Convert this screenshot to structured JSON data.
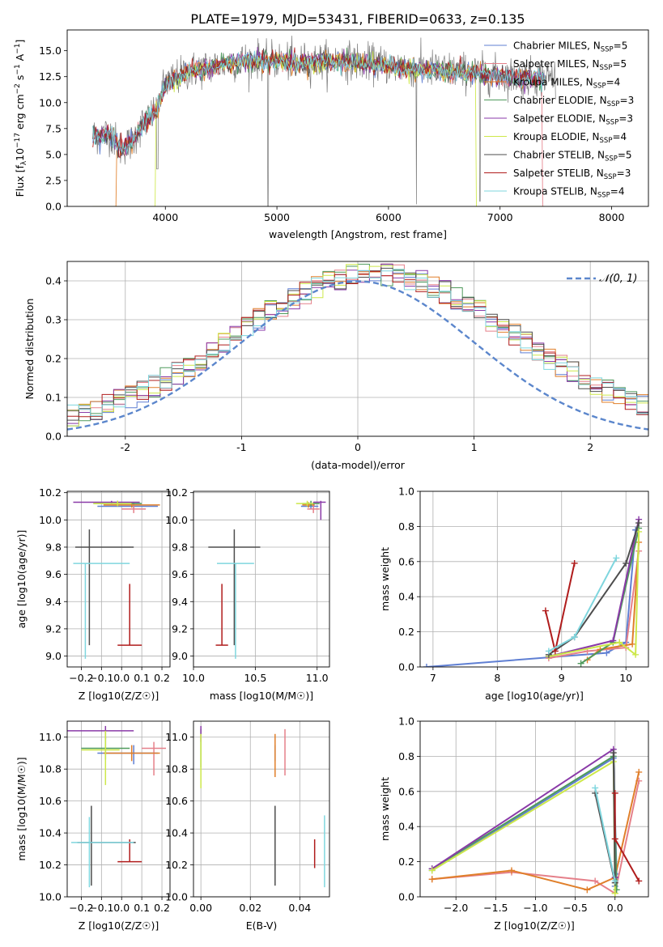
{
  "figure_title": "PLATE=1979, MJD=53431, FIBERID=0633, z=0.135",
  "models": [
    {
      "name": "Chabrier MILES, N$_{SSP}$=5",
      "label_main": "Chabrier MILES, N",
      "label_sub": "SSP",
      "label_tail": "=5",
      "color": "#5f7fd3"
    },
    {
      "name": "Salpeter MILES, N$_{SSP}$=5",
      "label_main": "Salpeter MILES, N",
      "label_sub": "SSP",
      "label_tail": "=5",
      "color": "#e5808a"
    },
    {
      "name": "Kroupa MILES, N$_{SSP}$=4",
      "label_main": "Kroupa MILES, N",
      "label_sub": "SSP",
      "label_tail": "=4",
      "color": "#e07f2a"
    },
    {
      "name": "Chabrier ELODIE, N$_{SSP}$=3",
      "label_main": "Chabrier ELODIE, N",
      "label_sub": "SSP",
      "label_tail": "=3",
      "color": "#4f9a5c"
    },
    {
      "name": "Salpeter ELODIE, N$_{SSP}$=3",
      "label_main": "Salpeter ELODIE, N",
      "label_sub": "SSP",
      "label_tail": "=3",
      "color": "#8a3aa8"
    },
    {
      "name": "Kroupa ELODIE, N$_{SSP}$=4",
      "label_main": "Kroupa ELODIE, N",
      "label_sub": "SSP",
      "label_tail": "=4",
      "color": "#cde84a"
    },
    {
      "name": "Chabrier STELIB, N$_{SSP}$=5",
      "label_main": "Chabrier STELIB, N",
      "label_sub": "SSP",
      "label_tail": "=5",
      "color": "#4d4d4d"
    },
    {
      "name": "Salpeter STELIB, N$_{SSP}$=3",
      "label_main": "Salpeter STELIB, N",
      "label_sub": "SSP",
      "label_tail": "=3",
      "color": "#b01c1c"
    },
    {
      "name": "Kroupa STELIB, N$_{SSP}$=4",
      "label_main": "Kroupa STELIB, N",
      "label_sub": "SSP",
      "label_tail": "=4",
      "color": "#7fd6de"
    }
  ],
  "chart_data": [
    {
      "id": "spectrum",
      "type": "line",
      "xlabel": "wavelength [Angstrom, rest frame]",
      "ylabel": "Flux [f_λ 10^-17 erg cm^-2 s^-1 A^-1]",
      "xlim": [
        3120,
        8330
      ],
      "ylim": [
        0,
        17
      ],
      "xticks": [
        4000,
        5000,
        6000,
        7000,
        8000
      ],
      "yticks": [
        0,
        2.5,
        5,
        7.5,
        10,
        12.5,
        15
      ],
      "ytick_labels": [
        "0.0",
        "2.5",
        "5.0",
        "7.5",
        "10.0",
        "12.5",
        "15.0"
      ],
      "grid": false,
      "legend": "right",
      "data_trend": {
        "x": [
          3350,
          3500,
          3600,
          3700,
          3800,
          3900,
          4000,
          4200,
          4500,
          4800,
          5200,
          5600,
          6000,
          6400,
          6800,
          7200,
          7500
        ],
        "y": [
          6.8,
          7.1,
          5.6,
          6.2,
          8.0,
          9.0,
          11.8,
          13.0,
          13.7,
          14.2,
          13.9,
          14.1,
          13.6,
          13.2,
          12.9,
          12.4,
          12.5
        ]
      },
      "data_x_range": [
        3350,
        7500
      ],
      "model_x_range": [
        3350,
        7400
      ]
    },
    {
      "id": "residuals",
      "type": "line",
      "xlabel": "(data-model)/error",
      "ylabel": "Normed distribution",
      "xlim": [
        -2.5,
        2.5
      ],
      "ylim": [
        0,
        0.45
      ],
      "xticks": [
        -2,
        -1,
        0,
        1,
        2
      ],
      "yticks": [
        0,
        0.1,
        0.2,
        0.3,
        0.4
      ],
      "ytick_labels": [
        "0.0",
        "0.1",
        "0.2",
        "0.3",
        "0.4"
      ],
      "grid": true,
      "legend": "top-right",
      "reference_curve": {
        "name": "N(0,1)",
        "label": "𝒩(0, 1)",
        "mu": 0,
        "sigma": 1
      },
      "histogram_bin_width": 0.1
    },
    {
      "id": "age_vs_Z",
      "type": "scatter",
      "xlabel": "Z [log10(Z/Z☉)]",
      "ylabel": "age [log10(age/yr)]",
      "xlim": [
        -0.27,
        0.24
      ],
      "ylim": [
        8.92,
        10.21
      ],
      "xticks": [
        -0.2,
        -0.1,
        0.0,
        0.1,
        0.2
      ],
      "yticks": [
        9.0,
        9.2,
        9.4,
        9.6,
        9.8,
        10.0,
        10.2
      ],
      "xtick_labels": [
        "−0.2",
        "−0.1",
        "0.0",
        "0.1",
        "0.2"
      ],
      "ytick_labels": [
        "9.0",
        "9.2",
        "9.4",
        "9.6",
        "9.8",
        "10.0",
        "10.2"
      ],
      "grid": true,
      "points": [
        {
          "model": 0,
          "x": 0.06,
          "y": 10.1,
          "xerr": [
            0.18,
            0.12
          ],
          "yerr": [
            0.02,
            0.02
          ]
        },
        {
          "model": 1,
          "x": 0.06,
          "y": 10.08,
          "xerr": [
            0.06,
            0.06
          ],
          "yerr": [
            0.03,
            0.05
          ]
        },
        {
          "model": 2,
          "x": 0.05,
          "y": 10.11,
          "xerr": [
            0.14,
            0.14
          ],
          "yerr": [
            0.02,
            0.02
          ]
        },
        {
          "model": 3,
          "x": -0.02,
          "y": 10.12,
          "xerr": [
            0.12,
            0.12
          ],
          "yerr": [
            0.02,
            0.02
          ]
        },
        {
          "model": 4,
          "x": -0.05,
          "y": 10.13,
          "xerr": [
            0.19,
            0.14
          ],
          "yerr": [
            0.01,
            0.01
          ]
        },
        {
          "model": 5,
          "x": -0.02,
          "y": 10.12,
          "xerr": [
            0.12,
            0.07
          ],
          "yerr": [
            0.02,
            0.02
          ]
        },
        {
          "model": 6,
          "x": -0.16,
          "y": 9.8,
          "xerr": [
            0.07,
            0.22
          ],
          "yerr": [
            0.72,
            0.13
          ]
        },
        {
          "model": 7,
          "x": 0.04,
          "y": 9.08,
          "xerr": [
            0.06,
            0.06
          ],
          "yerr": [
            0.0,
            0.45
          ]
        },
        {
          "model": 8,
          "x": -0.18,
          "y": 9.68,
          "xerr": [
            0.06,
            0.22
          ],
          "yerr": [
            0.7,
            0.0
          ]
        }
      ]
    },
    {
      "id": "age_vs_mass",
      "type": "scatter",
      "xlabel": "mass [log10(M/M☉)]",
      "ylabel": "",
      "xlim": [
        10.0,
        11.1
      ],
      "ylim": [
        8.92,
        10.21
      ],
      "xticks": [
        10.0,
        10.5,
        11.0
      ],
      "yticks": [
        9.0,
        9.2,
        9.4,
        9.6,
        9.8,
        10.0,
        10.2
      ],
      "xtick_labels": [
        "10.0",
        "10.5",
        "11.0"
      ],
      "ytick_labels": [
        "9.0",
        "9.2",
        "9.4",
        "9.6",
        "9.8",
        "10.0",
        "10.2"
      ],
      "grid": true,
      "points": [
        {
          "model": 0,
          "x": 10.95,
          "y": 10.1,
          "xerr": [
            0.08,
            0.06
          ],
          "yerr": [
            0.02,
            0.02
          ]
        },
        {
          "model": 1,
          "x": 10.97,
          "y": 10.08,
          "xerr": [
            0.05,
            0.05
          ],
          "yerr": [
            0.03,
            0.05
          ]
        },
        {
          "model": 2,
          "x": 10.93,
          "y": 10.11,
          "xerr": [
            0.05,
            0.05
          ],
          "yerr": [
            0.02,
            0.02
          ]
        },
        {
          "model": 3,
          "x": 10.95,
          "y": 10.12,
          "xerr": [
            0.07,
            0.07
          ],
          "yerr": [
            0.02,
            0.02
          ]
        },
        {
          "model": 4,
          "x": 11.03,
          "y": 10.13,
          "xerr": [
            0.06,
            0.04
          ],
          "yerr": [
            0.13,
            0.01
          ]
        },
        {
          "model": 5,
          "x": 10.92,
          "y": 10.12,
          "xerr": [
            0.09,
            0.05
          ],
          "yerr": [
            0.02,
            0.02
          ]
        },
        {
          "model": 6,
          "x": 10.33,
          "y": 9.8,
          "xerr": [
            0.21,
            0.21
          ],
          "yerr": [
            0.72,
            0.13
          ]
        },
        {
          "model": 7,
          "x": 10.23,
          "y": 9.08,
          "xerr": [
            0.05,
            0.05
          ],
          "yerr": [
            0.0,
            0.45
          ]
        },
        {
          "model": 8,
          "x": 10.34,
          "y": 9.68,
          "xerr": [
            0.15,
            0.15
          ],
          "yerr": [
            0.7,
            0.0
          ]
        }
      ]
    },
    {
      "id": "weight_vs_age",
      "type": "line",
      "xlabel": "age [log10(age/yr)]",
      "ylabel": "mass weight",
      "xlim": [
        6.8,
        10.35
      ],
      "ylim": [
        0,
        1
      ],
      "xticks": [
        7,
        8,
        9,
        10
      ],
      "yticks": [
        0,
        0.2,
        0.4,
        0.6,
        0.8,
        1.0
      ],
      "xtick_labels": [
        "7",
        "8",
        "9",
        "10"
      ],
      "ytick_labels": [
        "0.0",
        "0.2",
        "0.4",
        "0.6",
        "0.8",
        "1.0"
      ],
      "grid": true,
      "series": [
        {
          "model": 0,
          "x": [
            6.9,
            9.7,
            10.0,
            10.15
          ],
          "y": [
            0.0,
            0.08,
            0.14,
            0.78
          ]
        },
        {
          "model": 1,
          "x": [
            8.8,
            9.4,
            10.0,
            10.2
          ],
          "y": [
            0.05,
            0.09,
            0.11,
            0.66
          ]
        },
        {
          "model": 2,
          "x": [
            9.4,
            9.6,
            10.1,
            10.2
          ],
          "y": [
            0.04,
            0.1,
            0.13,
            0.71
          ]
        },
        {
          "model": 3,
          "x": [
            9.3,
            9.8,
            10.2
          ],
          "y": [
            0.02,
            0.14,
            0.79
          ]
        },
        {
          "model": 4,
          "x": [
            8.8,
            9.8,
            10.2
          ],
          "y": [
            0.06,
            0.15,
            0.84
          ]
        },
        {
          "model": 5,
          "x": [
            8.8,
            9.9,
            10.15,
            10.2
          ],
          "y": [
            0.06,
            0.14,
            0.07,
            0.77
          ]
        },
        {
          "model": 6,
          "x": [
            8.8,
            9.2,
            10.0,
            10.2
          ],
          "y": [
            0.07,
            0.17,
            0.59,
            0.82
          ]
        },
        {
          "model": 7,
          "x": [
            8.75,
            8.9,
            9.2
          ],
          "y": [
            0.32,
            0.09,
            0.59
          ]
        },
        {
          "model": 8,
          "x": [
            8.8,
            9.2,
            9.85
          ],
          "y": [
            0.09,
            0.17,
            0.62
          ]
        }
      ]
    },
    {
      "id": "mass_vs_Z",
      "type": "scatter",
      "xlabel": "Z [log10(Z/Z☉)]",
      "ylabel": "mass [log10(M/M☉)]",
      "xlim": [
        -0.27,
        0.24
      ],
      "ylim": [
        10.0,
        11.1
      ],
      "xticks": [
        -0.2,
        -0.1,
        0.0,
        0.1,
        0.2
      ],
      "yticks": [
        10.0,
        10.2,
        10.4,
        10.6,
        10.8,
        11.0
      ],
      "xtick_labels": [
        "−0.2",
        "−0.1",
        "0.0",
        "0.1",
        "0.2"
      ],
      "ytick_labels": [
        "10.0",
        "10.2",
        "10.4",
        "10.6",
        "10.8",
        "11.0"
      ],
      "grid": true,
      "points": [
        {
          "model": 0,
          "x": 0.06,
          "y": 10.9,
          "xerr": [
            0.18,
            0.12
          ],
          "yerr": [
            0.07,
            0.05
          ]
        },
        {
          "model": 1,
          "x": 0.16,
          "y": 10.93,
          "xerr": [
            0.06,
            0.06
          ],
          "yerr": [
            0.17,
            0.04
          ]
        },
        {
          "model": 2,
          "x": 0.05,
          "y": 10.9,
          "xerr": [
            0.14,
            0.14
          ],
          "yerr": [
            0.05,
            0.05
          ]
        },
        {
          "model": 3,
          "x": -0.08,
          "y": 10.93,
          "xerr": [
            0.12,
            0.12
          ],
          "yerr": [
            0.07,
            0.07
          ]
        },
        {
          "model": 4,
          "x": -0.08,
          "y": 11.04,
          "xerr": [
            0.19,
            0.14
          ],
          "yerr": [
            0.05,
            0.03
          ]
        },
        {
          "model": 5,
          "x": -0.08,
          "y": 10.92,
          "xerr": [
            0.12,
            0.07
          ],
          "yerr": [
            0.22,
            0.12
          ]
        },
        {
          "model": 6,
          "x": -0.15,
          "y": 10.34,
          "xerr": [
            0.07,
            0.22
          ],
          "yerr": [
            0.27,
            0.23
          ]
        },
        {
          "model": 7,
          "x": 0.04,
          "y": 10.22,
          "xerr": [
            0.06,
            0.06
          ],
          "yerr": [
            0.0,
            0.14
          ]
        },
        {
          "model": 8,
          "x": -0.16,
          "y": 10.34,
          "xerr": [
            0.09,
            0.22
          ],
          "yerr": [
            0.28,
            0.16
          ]
        }
      ]
    },
    {
      "id": "mass_vs_EBV",
      "type": "scatter",
      "xlabel": "E(B-V)",
      "ylabel": "",
      "xlim": [
        -0.003,
        0.052
      ],
      "ylim": [
        10.0,
        11.1
      ],
      "xticks": [
        0.0,
        0.02,
        0.04
      ],
      "yticks": [
        10.0,
        10.2,
        10.4,
        10.6,
        10.8,
        11.0
      ],
      "xtick_labels": [
        "0.00",
        "0.02",
        "0.04"
      ],
      "ytick_labels": [
        "10.0",
        "10.2",
        "10.4",
        "10.6",
        "10.8",
        "11.0"
      ],
      "grid": true,
      "points": [
        {
          "model": 0,
          "x": 0.03,
          "y": 10.9,
          "xerr": [
            0,
            0
          ],
          "yerr": [
            0.05,
            0.05
          ]
        },
        {
          "model": 1,
          "x": 0.034,
          "y": 10.93,
          "xerr": [
            0,
            0
          ],
          "yerr": [
            0.17,
            0.12
          ]
        },
        {
          "model": 2,
          "x": 0.03,
          "y": 10.9,
          "xerr": [
            0,
            0
          ],
          "yerr": [
            0.15,
            0.12
          ]
        },
        {
          "model": 3,
          "x": 0.0,
          "y": 10.93,
          "xerr": [
            0,
            0
          ],
          "yerr": [
            0.12,
            0.12
          ]
        },
        {
          "model": 4,
          "x": 0.0,
          "y": 11.04,
          "xerr": [
            0,
            0
          ],
          "yerr": [
            0.07,
            0.03
          ]
        },
        {
          "model": 5,
          "x": 0.0,
          "y": 10.92,
          "xerr": [
            0,
            0
          ],
          "yerr": [
            0.24,
            0.1
          ]
        },
        {
          "model": 6,
          "x": 0.03,
          "y": 10.34,
          "xerr": [
            0,
            0
          ],
          "yerr": [
            0.27,
            0.23
          ]
        },
        {
          "model": 7,
          "x": 0.046,
          "y": 10.26,
          "xerr": [
            0,
            0
          ],
          "yerr": [
            0.08,
            0.1
          ]
        },
        {
          "model": 8,
          "x": 0.05,
          "y": 10.34,
          "xerr": [
            0,
            0
          ],
          "yerr": [
            0.28,
            0.17
          ]
        }
      ]
    },
    {
      "id": "weight_vs_Z",
      "type": "line",
      "xlabel": "Z [log10(Z/Z☉)]",
      "ylabel": "mass weight",
      "xlim": [
        -2.45,
        0.42
      ],
      "ylim": [
        0,
        1
      ],
      "xticks": [
        -2.0,
        -1.5,
        -1.0,
        -0.5,
        0.0
      ],
      "yticks": [
        0,
        0.2,
        0.4,
        0.6,
        0.8,
        1.0
      ],
      "xtick_labels": [
        "−2.0",
        "−1.5",
        "−1.0",
        "−0.5",
        "0.0"
      ],
      "ytick_labels": [
        "0.0",
        "0.2",
        "0.4",
        "0.6",
        "0.8",
        "1.0"
      ],
      "grid": true,
      "series": [
        {
          "model": 0,
          "x": [
            -2.3,
            -0.02,
            0.02,
            0.0
          ],
          "y": [
            0.15,
            0.79,
            0.13,
            0.06
          ]
        },
        {
          "model": 1,
          "x": [
            -2.3,
            -1.3,
            -0.25,
            0.0,
            0.3
          ],
          "y": [
            0.1,
            0.14,
            0.09,
            0.02,
            0.66
          ]
        },
        {
          "model": 2,
          "x": [
            -2.3,
            -1.3,
            -0.35,
            0.0,
            0.3
          ],
          "y": [
            0.1,
            0.15,
            0.04,
            0.11,
            0.71
          ]
        },
        {
          "model": 3,
          "x": [
            -2.3,
            -0.02,
            0.02
          ],
          "y": [
            0.16,
            0.8,
            0.04
          ]
        },
        {
          "model": 4,
          "x": [
            -2.3,
            -0.02,
            0.0
          ],
          "y": [
            0.16,
            0.84,
            0.11
          ]
        },
        {
          "model": 5,
          "x": [
            -2.3,
            -0.02,
            0.0
          ],
          "y": [
            0.15,
            0.77,
            0.02
          ]
        },
        {
          "model": 6,
          "x": [
            -0.25,
            0.0,
            -0.02
          ],
          "y": [
            0.59,
            0.08,
            0.82
          ]
        },
        {
          "model": 7,
          "x": [
            0.0,
            0.0,
            0.3
          ],
          "y": [
            0.59,
            0.33,
            0.09
          ]
        },
        {
          "model": 8,
          "x": [
            -0.25,
            0.0
          ],
          "y": [
            0.62,
            0.09
          ]
        }
      ]
    }
  ]
}
